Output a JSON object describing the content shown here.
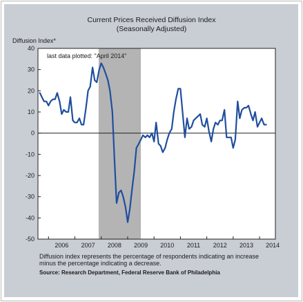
{
  "chart_data": {
    "type": "line",
    "title": "Current Prices Received Diffusion Index",
    "subtitle": "(Seasonally Adjusted)",
    "ylabel": "Diffusion Index*",
    "annotation": "last data plotted: \"April 2014\"",
    "note": "Diffusion index represents the percentage of respondents indicating an increase minus the percentage indicating a decrease.",
    "source": "Source: Research Department, Federal Reserve Bank of Philadelphia",
    "ylim": [
      -50,
      40
    ],
    "yticks": [
      40,
      30,
      20,
      10,
      0,
      -10,
      -20,
      -30,
      -40,
      -50
    ],
    "xlim": [
      2005.6,
      2014.6
    ],
    "xticks": [
      "2006",
      "2007",
      "2008",
      "2009",
      "2010",
      "2011",
      "2012",
      "2013",
      "2014"
    ],
    "recession": [
      2007.9,
      2009.5
    ],
    "line_color": "#1f4e9e",
    "series": [
      {
        "name": "",
        "x": [
          2005.67,
          2005.75,
          2005.83,
          2005.92,
          2006.0,
          2006.08,
          2006.17,
          2006.25,
          2006.33,
          2006.42,
          2006.5,
          2006.58,
          2006.67,
          2006.75,
          2006.83,
          2006.92,
          2007.0,
          2007.08,
          2007.17,
          2007.25,
          2007.33,
          2007.42,
          2007.5,
          2007.58,
          2007.67,
          2007.75,
          2007.83,
          2007.92,
          2008.0,
          2008.08,
          2008.17,
          2008.25,
          2008.33,
          2008.42,
          2008.5,
          2008.58,
          2008.67,
          2008.75,
          2008.83,
          2008.92,
          2009.0,
          2009.08,
          2009.17,
          2009.25,
          2009.33,
          2009.42,
          2009.5,
          2009.58,
          2009.67,
          2009.75,
          2009.83,
          2009.92,
          2010.0,
          2010.08,
          2010.17,
          2010.25,
          2010.33,
          2010.42,
          2010.5,
          2010.58,
          2010.67,
          2010.75,
          2010.83,
          2010.92,
          2011.0,
          2011.08,
          2011.17,
          2011.25,
          2011.33,
          2011.42,
          2011.5,
          2011.58,
          2011.67,
          2011.75,
          2011.83,
          2011.92,
          2012.0,
          2012.08,
          2012.17,
          2012.25,
          2012.33,
          2012.42,
          2012.5,
          2012.58,
          2012.67,
          2012.75,
          2012.83,
          2012.92,
          2013.0,
          2013.08,
          2013.17,
          2013.25,
          2013.33,
          2013.42,
          2013.5,
          2013.58,
          2013.67,
          2013.75,
          2013.83,
          2013.92,
          2014.0,
          2014.08,
          2014.17,
          2014.25
        ],
        "y": [
          19,
          17,
          15,
          15,
          13,
          15,
          16,
          16,
          19,
          15,
          9,
          11,
          10,
          10,
          17,
          6,
          5,
          5,
          7,
          4,
          4,
          12,
          20,
          22,
          31,
          25,
          24,
          30,
          33,
          31,
          28,
          25,
          20,
          10,
          -12,
          -33,
          -28,
          -27,
          -30,
          -35,
          -42,
          -36,
          -26,
          -18,
          -7,
          -5,
          -3,
          -1,
          -2,
          -1,
          -2,
          0,
          -4,
          5,
          -5,
          -6,
          -9,
          -7,
          -3,
          0,
          2,
          10,
          16,
          21,
          21,
          10,
          -2,
          7,
          2,
          3,
          6,
          7,
          8,
          9,
          4,
          3,
          7,
          1,
          -4,
          2,
          5,
          4,
          6,
          6,
          11,
          -2,
          -2,
          -2,
          -7,
          -3,
          15,
          7,
          11,
          12,
          12,
          13,
          9,
          6,
          10,
          3,
          5,
          7,
          4,
          4
        ]
      }
    ]
  }
}
